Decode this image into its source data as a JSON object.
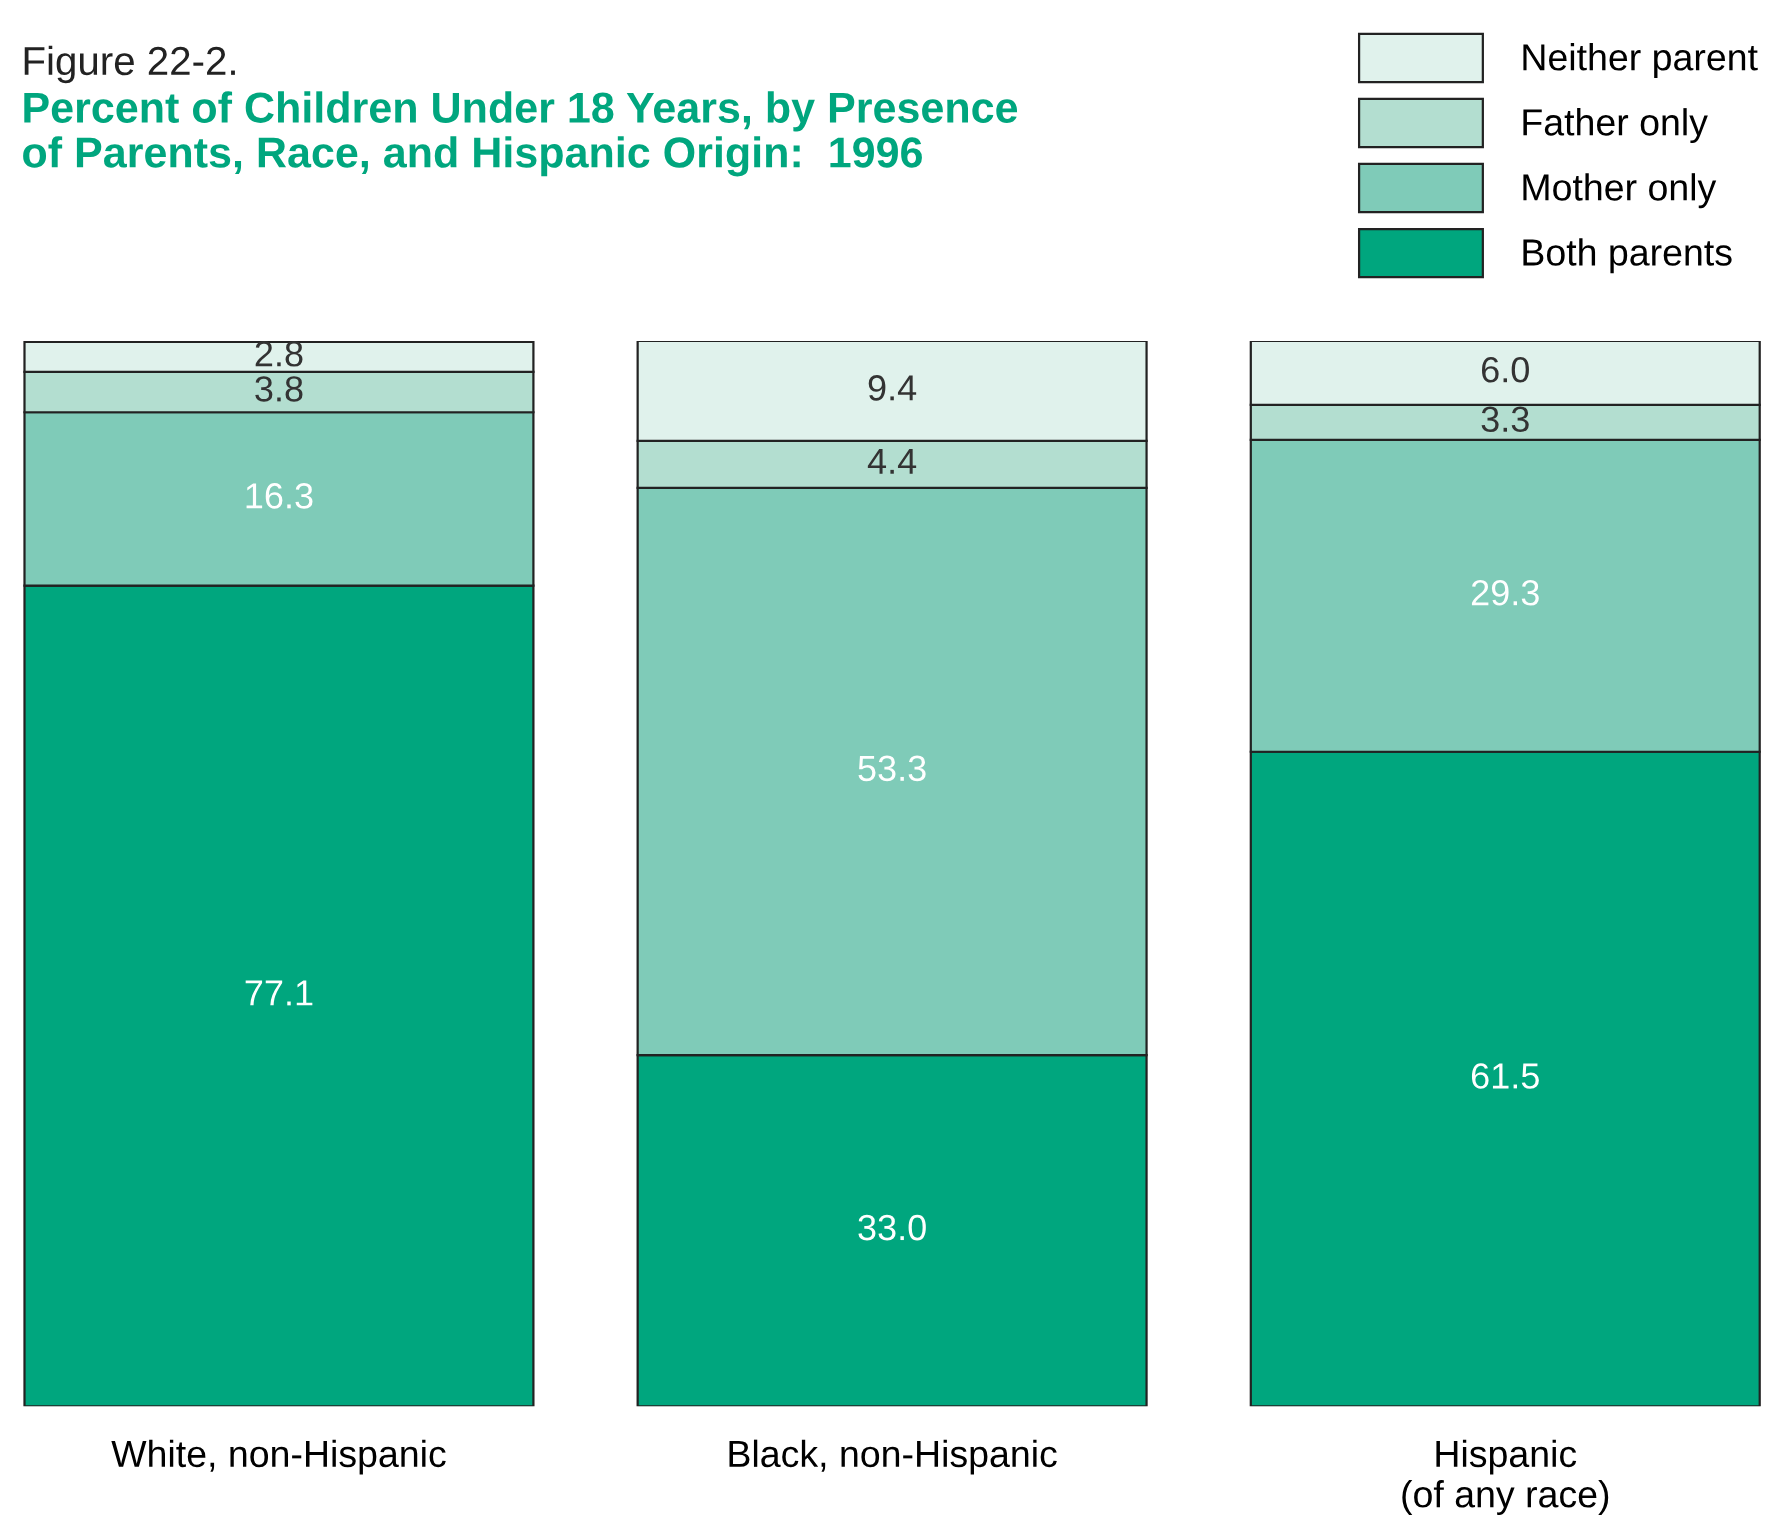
{
  "chart_data": {
    "type": "bar",
    "stacked": true,
    "title": "Figure 22-2.",
    "subtitle": "Percent of Children Under 18 Years, by Presence\nof Parents, Race, and Hispanic Origin:  1996",
    "categories": [
      "White, non-Hispanic",
      "Black, non-Hispanic",
      "Hispanic\n(of any race)"
    ],
    "ylim": [
      0,
      100.1
    ],
    "series": [
      {
        "name": "Both parents",
        "color": "#00a67e",
        "values": [
          77.1,
          33.0,
          61.5
        ],
        "value_labels": [
          "77.1",
          "33.0",
          "61.5"
        ]
      },
      {
        "name": "Mother only",
        "color": "#7fcbb8",
        "values": [
          16.3,
          53.3,
          29.3
        ],
        "value_labels": [
          "16.3",
          "53.3",
          "29.3"
        ]
      },
      {
        "name": "Father only",
        "color": "#b3ded0",
        "values": [
          3.8,
          4.4,
          3.3
        ],
        "value_labels": [
          "3.8",
          "4.4",
          "3.3"
        ]
      },
      {
        "name": "Neither parent",
        "color": "#e0f2ec",
        "values": [
          2.8,
          9.4,
          6.0
        ],
        "value_labels": [
          "2.8",
          "9.4",
          "6.0"
        ]
      }
    ],
    "legend": "top right",
    "grid": false,
    "tick_labels": "x"
  }
}
